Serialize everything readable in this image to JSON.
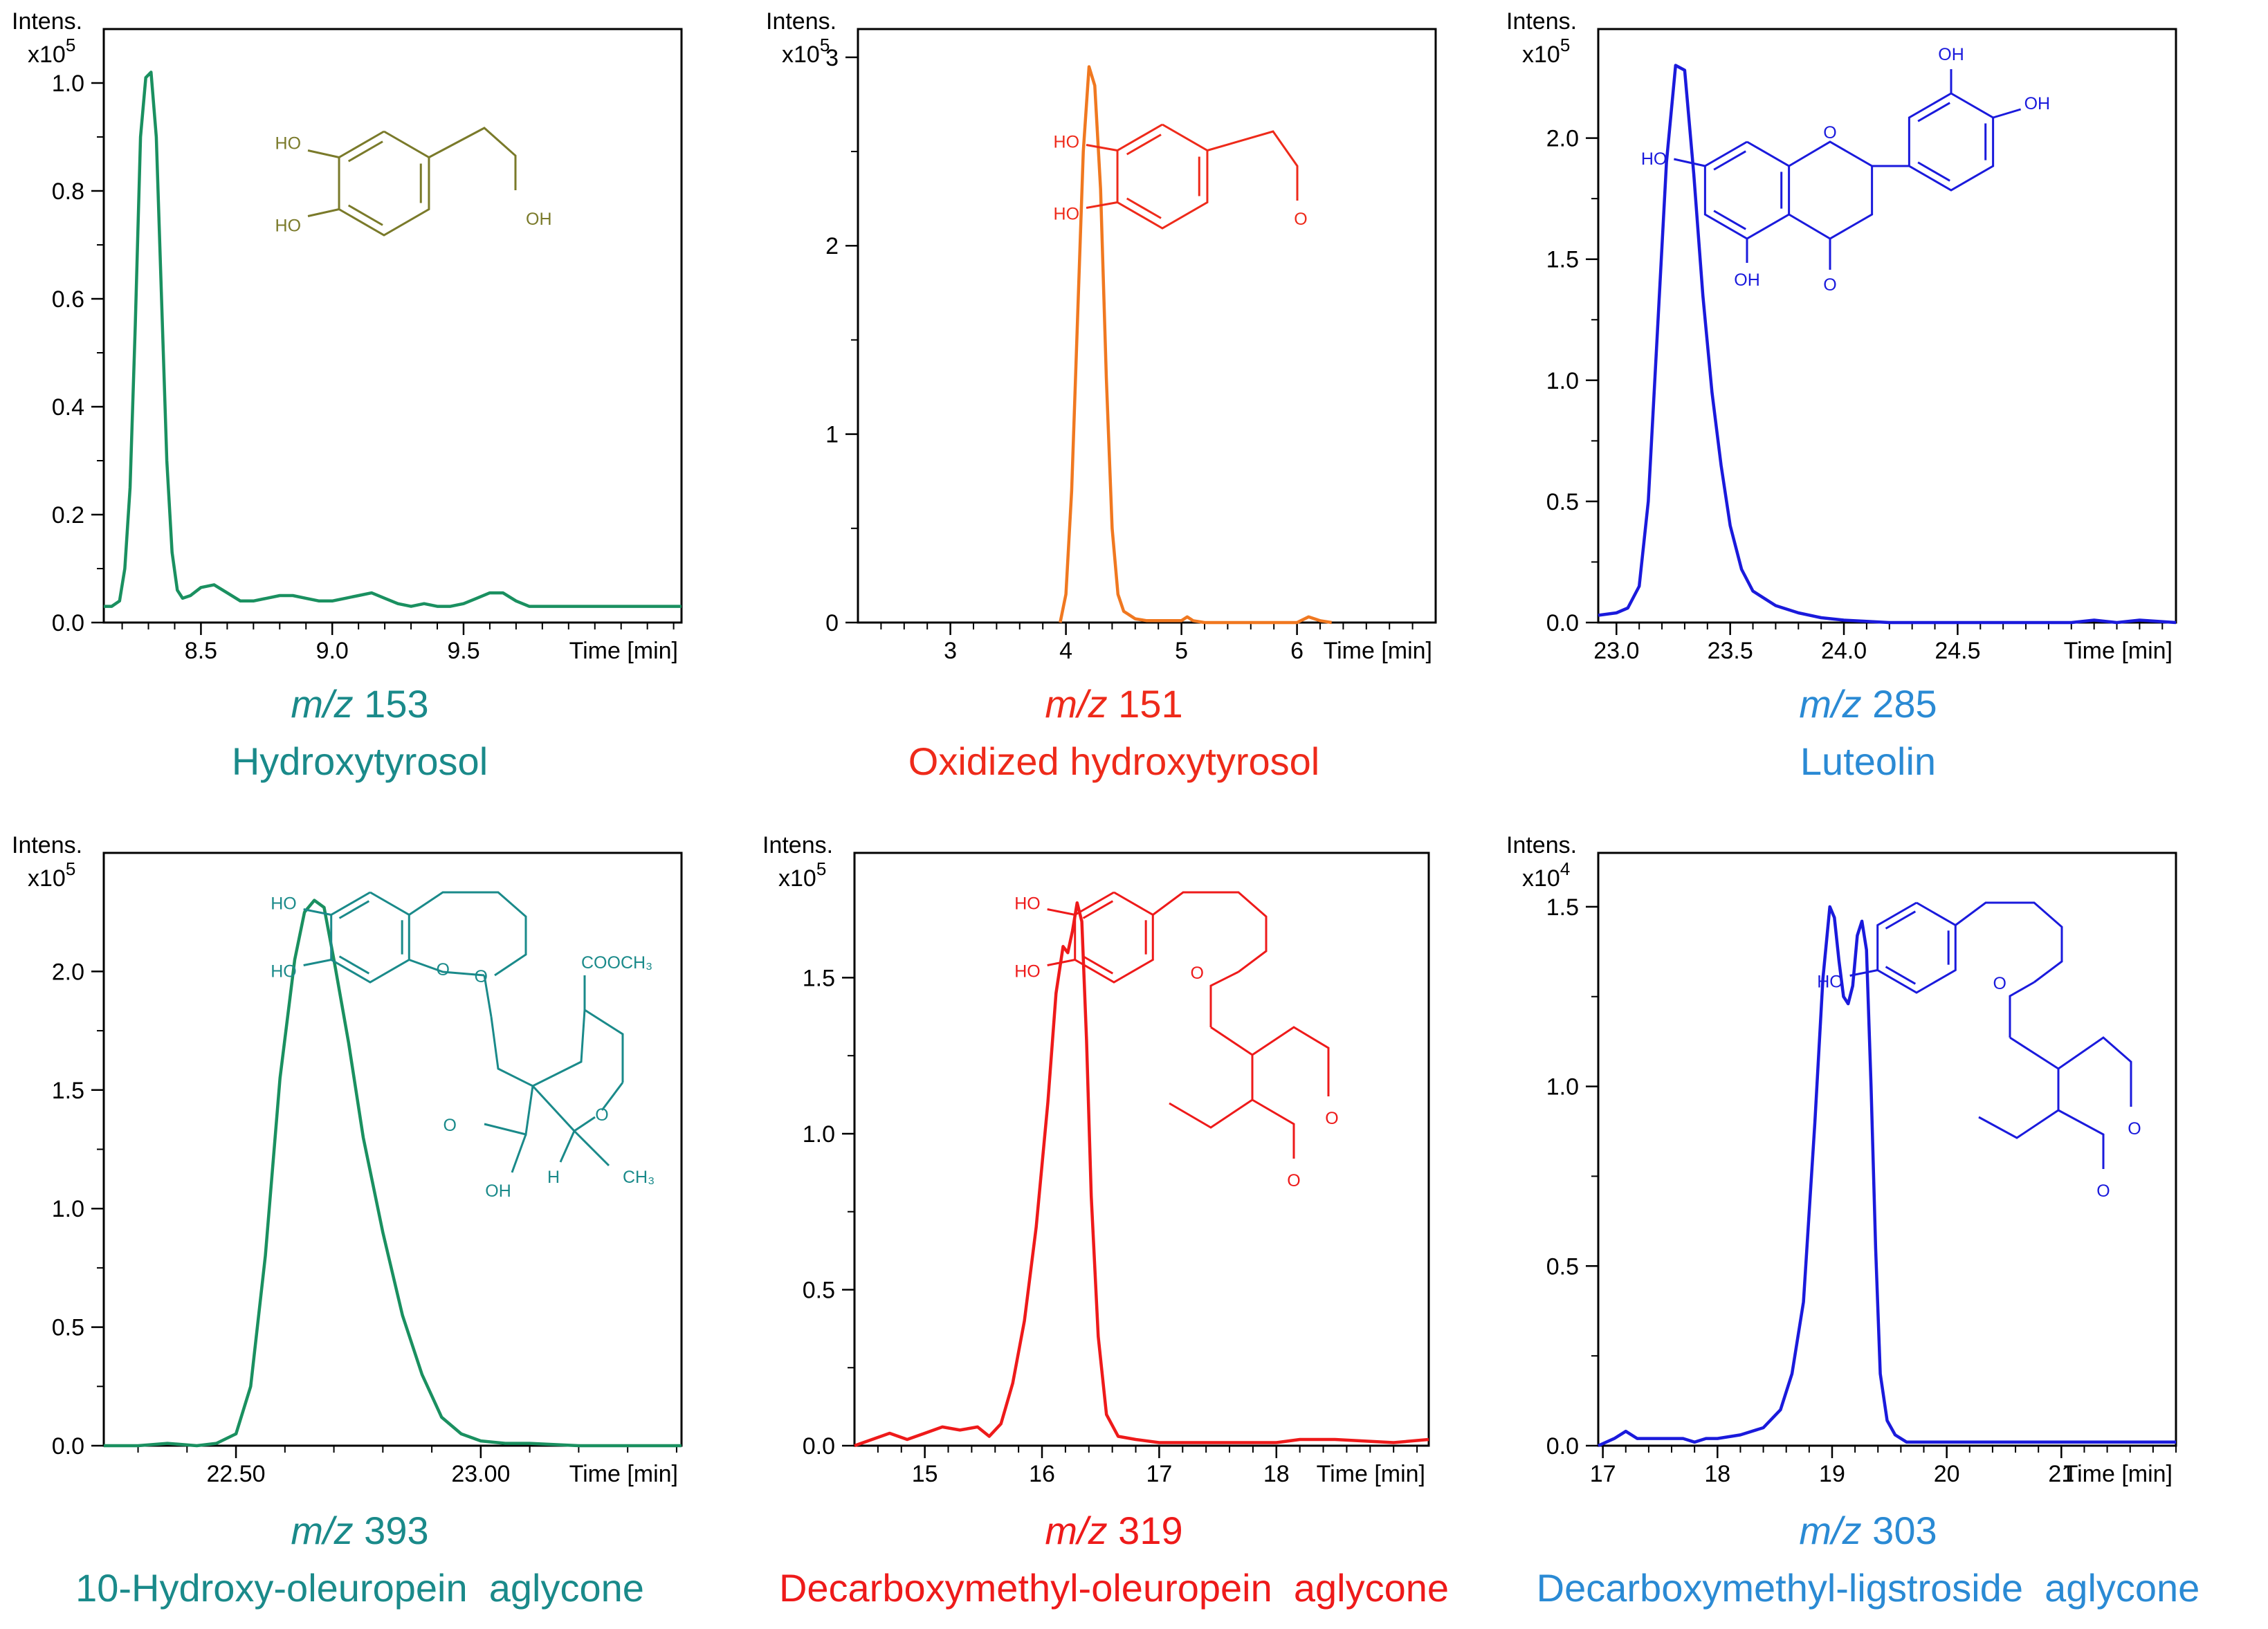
{
  "chart_data": [
    {
      "type": "line",
      "ylabel": "Intens.",
      "scale_label": "x10",
      "scale_exp": "5",
      "xlabel": "Time [min]",
      "xlim": [
        8.13,
        10.33
      ],
      "ylim": [
        0,
        1.1
      ],
      "xticks": [
        "8.5",
        "9.0",
        "9.5"
      ],
      "xtick_values": [
        8.5,
        9.0,
        9.5
      ],
      "yticks": [
        "0.0",
        "0.2",
        "0.4",
        "0.6",
        "0.8",
        "1.0"
      ],
      "ytick_values": [
        0,
        0.2,
        0.4,
        0.6,
        0.8,
        1.0
      ],
      "color": "#1a9060",
      "mz_prefix": "m/z",
      "mz_value": "153",
      "compound": "Hydroxytyrosol",
      "caption_color": "#1a8a8a",
      "molecule": "hydroxytyrosol",
      "molecule_color": "#7a7a2a",
      "series": [
        {
          "x": [
            8.13,
            8.16,
            8.19,
            8.21,
            8.23,
            8.25,
            8.27,
            8.29,
            8.31,
            8.33,
            8.35,
            8.37,
            8.39,
            8.41,
            8.43,
            8.46,
            8.5,
            8.55,
            8.6,
            8.65,
            8.7,
            8.75,
            8.8,
            8.85,
            8.9,
            8.95,
            9.0,
            9.05,
            9.1,
            9.15,
            9.2,
            9.25,
            9.3,
            9.35,
            9.4,
            9.45,
            9.5,
            9.55,
            9.6,
            9.65,
            9.7,
            9.75,
            9.8,
            9.9,
            10.0,
            10.1,
            10.2,
            10.33
          ],
          "y": [
            0.03,
            0.03,
            0.04,
            0.1,
            0.25,
            0.55,
            0.9,
            1.01,
            1.02,
            0.9,
            0.6,
            0.3,
            0.13,
            0.06,
            0.045,
            0.05,
            0.065,
            0.07,
            0.055,
            0.04,
            0.04,
            0.045,
            0.05,
            0.05,
            0.045,
            0.04,
            0.04,
            0.045,
            0.05,
            0.055,
            0.045,
            0.035,
            0.03,
            0.035,
            0.03,
            0.03,
            0.035,
            0.045,
            0.055,
            0.055,
            0.04,
            0.03,
            0.03,
            0.03,
            0.03,
            0.03,
            0.03,
            0.03
          ]
        }
      ]
    },
    {
      "type": "line",
      "ylabel": "Intens.",
      "scale_label": "x10",
      "scale_exp": "5",
      "xlabel": "Time [min]",
      "xlim": [
        2.2,
        7.2
      ],
      "ylim": [
        0,
        3.15
      ],
      "xticks": [
        "3",
        "4",
        "5",
        "6"
      ],
      "xtick_values": [
        3,
        4,
        5,
        6
      ],
      "yticks": [
        "0",
        "1",
        "2",
        "3"
      ],
      "ytick_values": [
        0,
        1,
        2,
        3
      ],
      "color": "#f07820",
      "mz_prefix": "m/z",
      "mz_value": " 151",
      "compound": "Oxidized hydroxytyrosol",
      "caption_color": "#ee2a1a",
      "molecule": "oxidized",
      "molecule_color": "#ee2a1a",
      "series": [
        {
          "x": [
            3.95,
            4.0,
            4.05,
            4.1,
            4.15,
            4.2,
            4.25,
            4.3,
            4.35,
            4.4,
            4.45,
            4.5,
            4.55,
            4.6,
            4.7,
            4.8,
            4.9,
            5.0,
            5.05,
            5.1,
            5.2,
            5.5,
            6.0,
            6.1,
            6.2,
            6.3
          ],
          "y": [
            0,
            0.15,
            0.7,
            1.6,
            2.5,
            2.95,
            2.85,
            2.3,
            1.3,
            0.5,
            0.15,
            0.06,
            0.04,
            0.02,
            0.01,
            0.01,
            0.01,
            0.01,
            0.03,
            0.01,
            0.0,
            0.0,
            0.0,
            0.03,
            0.01,
            0.0
          ]
        }
      ]
    },
    {
      "type": "line",
      "ylabel": "Intens.",
      "scale_label": "x10",
      "scale_exp": "5",
      "xlabel": "Time [min]",
      "xlim": [
        22.92,
        25.46
      ],
      "ylim": [
        0,
        2.45
      ],
      "xticks": [
        "23.0",
        "23.5",
        "24.0",
        "24.5"
      ],
      "xtick_values": [
        23.0,
        23.5,
        24.0,
        24.5
      ],
      "yticks": [
        "0.0",
        "0.5",
        "1.0",
        "1.5",
        "2.0"
      ],
      "ytick_values": [
        0,
        0.5,
        1.0,
        1.5,
        2.0
      ],
      "color": "#1a1adc",
      "mz_prefix": "m/z",
      "mz_value": "285",
      "compound": "Luteolin",
      "caption_color": "#2a8ad4",
      "molecule": "luteolin",
      "molecule_color": "#1a1adc",
      "series": [
        {
          "x": [
            22.92,
            23.0,
            23.05,
            23.1,
            23.14,
            23.18,
            23.22,
            23.26,
            23.3,
            23.34,
            23.38,
            23.42,
            23.46,
            23.5,
            23.55,
            23.6,
            23.7,
            23.8,
            23.9,
            24.0,
            24.2,
            24.5,
            24.8,
            25.0,
            25.1,
            25.2,
            25.3,
            25.46
          ],
          "y": [
            0.03,
            0.04,
            0.06,
            0.15,
            0.5,
            1.2,
            1.9,
            2.3,
            2.28,
            1.85,
            1.35,
            0.95,
            0.65,
            0.4,
            0.22,
            0.13,
            0.07,
            0.04,
            0.02,
            0.01,
            0.0,
            0.0,
            0.0,
            0.0,
            0.01,
            0.0,
            0.01,
            0.0
          ]
        }
      ]
    },
    {
      "type": "line",
      "ylabel": "Intens.",
      "scale_label": "x10",
      "scale_exp": "5",
      "xlabel": "Time [min]",
      "xlim": [
        22.23,
        23.41
      ],
      "ylim": [
        0,
        2.5
      ],
      "xticks": [
        "22.50",
        "23.00"
      ],
      "xtick_values": [
        22.5,
        23.0
      ],
      "yticks": [
        "0.0",
        "0.5",
        "1.0",
        "1.5",
        "2.0"
      ],
      "ytick_values": [
        0,
        0.5,
        1.0,
        1.5,
        2.0
      ],
      "color": "#1a9060",
      "mz_prefix": "m/z",
      "mz_value": "393",
      "compound": "10-Hydroxy-oleuropein  aglycone",
      "caption_color": "#1a8a8a",
      "molecule": "hydroxyoleuropein",
      "molecule_color": "#1a8a8a",
      "series": [
        {
          "x": [
            22.23,
            22.3,
            22.36,
            22.42,
            22.46,
            22.5,
            22.53,
            22.56,
            22.59,
            22.62,
            22.64,
            22.66,
            22.68,
            22.7,
            22.73,
            22.76,
            22.8,
            22.84,
            22.88,
            22.92,
            22.96,
            23.0,
            23.05,
            23.1,
            23.2,
            23.3,
            23.41
          ],
          "y": [
            0.0,
            0.0,
            0.01,
            0.0,
            0.01,
            0.05,
            0.25,
            0.8,
            1.55,
            2.05,
            2.25,
            2.3,
            2.27,
            2.05,
            1.7,
            1.3,
            0.9,
            0.55,
            0.3,
            0.12,
            0.05,
            0.02,
            0.01,
            0.01,
            0.0,
            0.0,
            0.0
          ]
        }
      ]
    },
    {
      "type": "line",
      "ylabel": "Intens.",
      "scale_label": "x10",
      "scale_exp": "5",
      "xlabel": "Time [min]",
      "xlim": [
        14.4,
        19.3
      ],
      "ylim": [
        0,
        1.9
      ],
      "xticks": [
        "15",
        "16",
        "17",
        "18"
      ],
      "xtick_values": [
        15,
        16,
        17,
        18
      ],
      "yticks": [
        "0.0",
        "0.5",
        "1.0",
        "1.5"
      ],
      "ytick_values": [
        0,
        0.5,
        1.0,
        1.5
      ],
      "color": "#ee1a1a",
      "mz_prefix": "m/z",
      "mz_value": "319",
      "compound": "Decarboxymethyl-oleuropein  aglycone",
      "caption_color": "#ee1a1a",
      "molecule": "dmoleuropein",
      "molecule_color": "#ee1a1a",
      "series": [
        {
          "x": [
            14.4,
            14.55,
            14.7,
            14.85,
            15.0,
            15.15,
            15.3,
            15.45,
            15.55,
            15.65,
            15.75,
            15.85,
            15.95,
            16.05,
            16.12,
            16.18,
            16.22,
            16.26,
            16.3,
            16.34,
            16.38,
            16.42,
            16.48,
            16.55,
            16.65,
            16.8,
            17.0,
            17.5,
            18.0,
            18.2,
            18.5,
            19.0,
            19.3
          ],
          "y": [
            0.0,
            0.02,
            0.04,
            0.02,
            0.04,
            0.06,
            0.05,
            0.06,
            0.03,
            0.07,
            0.2,
            0.4,
            0.7,
            1.1,
            1.45,
            1.6,
            1.58,
            1.65,
            1.74,
            1.68,
            1.3,
            0.8,
            0.35,
            0.1,
            0.03,
            0.02,
            0.01,
            0.01,
            0.01,
            0.02,
            0.02,
            0.01,
            0.02
          ]
        }
      ]
    },
    {
      "type": "line",
      "ylabel": "Intens.",
      "scale_label": "x10",
      "scale_exp": "4",
      "xlabel": "Time [min]",
      "xlim": [
        16.96,
        22.0
      ],
      "ylim": [
        0,
        1.65
      ],
      "xticks": [
        "17",
        "18",
        "19",
        "20",
        "21"
      ],
      "xtick_values": [
        17,
        18,
        19,
        20,
        21
      ],
      "yticks": [
        "0.0",
        "0.5",
        "1.0",
        "1.5"
      ],
      "ytick_values": [
        0,
        0.5,
        1.0,
        1.5
      ],
      "color": "#1a1adc",
      "mz_prefix": "m/z",
      "mz_value": "303",
      "compound": "Decarboxymethyl-ligstroside  aglycone",
      "caption_color": "#2a8ad4",
      "molecule": "dmligstroside",
      "molecule_color": "#1a1adc",
      "series": [
        {
          "x": [
            16.96,
            17.1,
            17.2,
            17.3,
            17.5,
            17.7,
            17.8,
            17.9,
            18.0,
            18.2,
            18.4,
            18.55,
            18.65,
            18.75,
            18.85,
            18.92,
            18.98,
            19.02,
            19.06,
            19.1,
            19.14,
            19.18,
            19.22,
            19.26,
            19.3,
            19.34,
            19.38,
            19.42,
            19.48,
            19.55,
            19.65,
            19.8,
            20.0,
            20.5,
            21.0,
            21.5,
            22.0
          ],
          "y": [
            0.0,
            0.02,
            0.04,
            0.02,
            0.02,
            0.02,
            0.01,
            0.02,
            0.02,
            0.03,
            0.05,
            0.1,
            0.2,
            0.4,
            0.9,
            1.3,
            1.5,
            1.47,
            1.35,
            1.25,
            1.23,
            1.28,
            1.42,
            1.46,
            1.38,
            1.0,
            0.55,
            0.2,
            0.07,
            0.03,
            0.01,
            0.01,
            0.01,
            0.01,
            0.01,
            0.01,
            0.01
          ]
        }
      ]
    }
  ]
}
